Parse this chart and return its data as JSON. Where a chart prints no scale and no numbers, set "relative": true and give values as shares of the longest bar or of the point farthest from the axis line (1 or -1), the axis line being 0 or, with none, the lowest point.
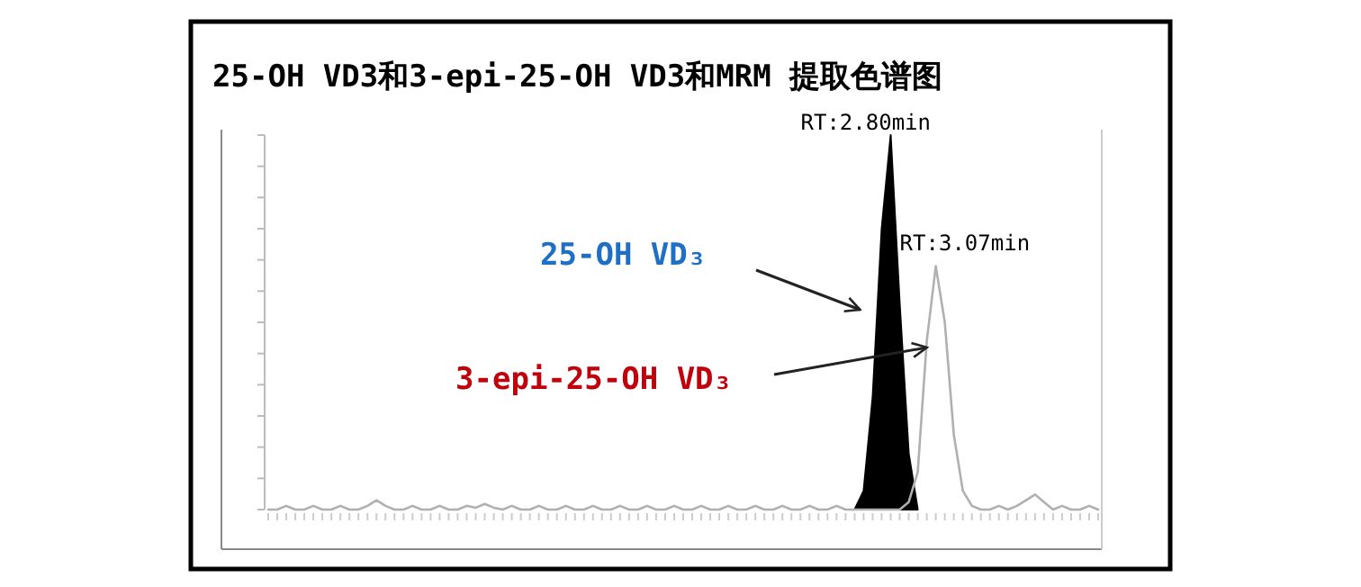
{
  "chart_data": {
    "type": "area",
    "title": "25-OH VD3和3-epi-25-OH VD3和MRM 提取色谱图",
    "relative": true,
    "categories": [
      null,
      null,
      null,
      null,
      null,
      null,
      null,
      null,
      null,
      null,
      null,
      null,
      null,
      null,
      null,
      null,
      null,
      null,
      null,
      null,
      null,
      null,
      null,
      null,
      null,
      null,
      null,
      null,
      null,
      null,
      null,
      null,
      null,
      null,
      null,
      null,
      null,
      null,
      null,
      null,
      null,
      null,
      null,
      null,
      null,
      null,
      null,
      null,
      null,
      null,
      null,
      null,
      null,
      null,
      null,
      null,
      null,
      null,
      null,
      null,
      null,
      null,
      null,
      null,
      null,
      null,
      null,
      null,
      null,
      null,
      null,
      null,
      null,
      null,
      null,
      null,
      null,
      null,
      null,
      null,
      null,
      null,
      null,
      null,
      null,
      null,
      null,
      null,
      null,
      null,
      null,
      null,
      null
    ],
    "series": [
      {
        "color": "#000000",
        "values": [
          null,
          null,
          null,
          null,
          null,
          null,
          null,
          null,
          null,
          null,
          null,
          null,
          null,
          null,
          null,
          null,
          null,
          null,
          null,
          null,
          null,
          null,
          null,
          null,
          null,
          null,
          null,
          null,
          null,
          null,
          null,
          null,
          null,
          null,
          null,
          null,
          null,
          null,
          null,
          null,
          null,
          null,
          null,
          null,
          null,
          null,
          null,
          null,
          null,
          null,
          null,
          null,
          null,
          null,
          null,
          null,
          null,
          null,
          null,
          null,
          null,
          null,
          null,
          null,
          null,
          0,
          0.05,
          0.3,
          0.75,
          1,
          0.55,
          0.15,
          0,
          null,
          null,
          null,
          null,
          null,
          null,
          null,
          null,
          null,
          null,
          null,
          null,
          null,
          null,
          null,
          null,
          null,
          null,
          null,
          null
        ]
      },
      {
        "type": "line",
        "color": "#b0b0b0",
        "values": [
          0,
          0,
          0.01,
          0,
          0,
          0.01,
          0,
          0,
          0.01,
          0,
          0,
          0.01,
          0.025,
          0.01,
          0,
          0,
          0.01,
          0,
          0,
          0.01,
          0,
          0,
          0.01,
          0.005,
          0.015,
          0.005,
          0,
          0.01,
          0,
          0,
          0.01,
          0,
          0,
          0.01,
          0,
          0,
          0.01,
          0,
          0,
          0.01,
          0,
          0,
          0.01,
          0,
          0,
          0.01,
          0,
          0,
          0.01,
          0,
          0,
          0.01,
          0,
          0,
          0.01,
          0,
          0,
          0.01,
          0,
          0,
          0.01,
          0,
          0,
          0.01,
          0,
          0,
          0,
          0,
          0,
          0,
          0,
          0.02,
          0.1,
          0.45,
          0.65,
          0.5,
          0.2,
          0.05,
          0.01,
          0,
          0,
          0.01,
          0,
          0.01,
          0.025,
          0.04,
          0.02,
          0,
          0.01,
          0,
          0,
          0.01,
          0
        ]
      }
    ],
    "annotations": [
      "RT:2.80min",
      "RT:3.07min",
      "25-OH VD₃",
      "3-epi-25-OH VD₃"
    ]
  }
}
